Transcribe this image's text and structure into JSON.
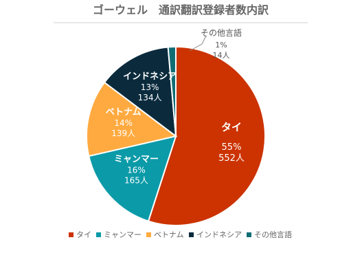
{
  "chart_data": {
    "type": "pie",
    "title": "ゴーウェル　通訳翻訳登録者数内訳",
    "slices": [
      {
        "label": "タイ",
        "percent_label": "55%",
        "count_label": "552人",
        "value": 552,
        "color": "#CC3300"
      },
      {
        "label": "ミャンマー",
        "percent_label": "16%",
        "count_label": "165人",
        "value": 165,
        "color": "#0B9AA8"
      },
      {
        "label": "ベトナム",
        "percent_label": "14%",
        "count_label": "139人",
        "value": 139,
        "color": "#FFAA40"
      },
      {
        "label": "インドネシア",
        "percent_label": "13%",
        "count_label": "134人",
        "value": 134,
        "color": "#0B2B3D"
      },
      {
        "label": "その他言語",
        "percent_label": "1%",
        "count_label": "14人",
        "value": 14,
        "color": "#116D74"
      }
    ],
    "legend_position": "bottom"
  }
}
